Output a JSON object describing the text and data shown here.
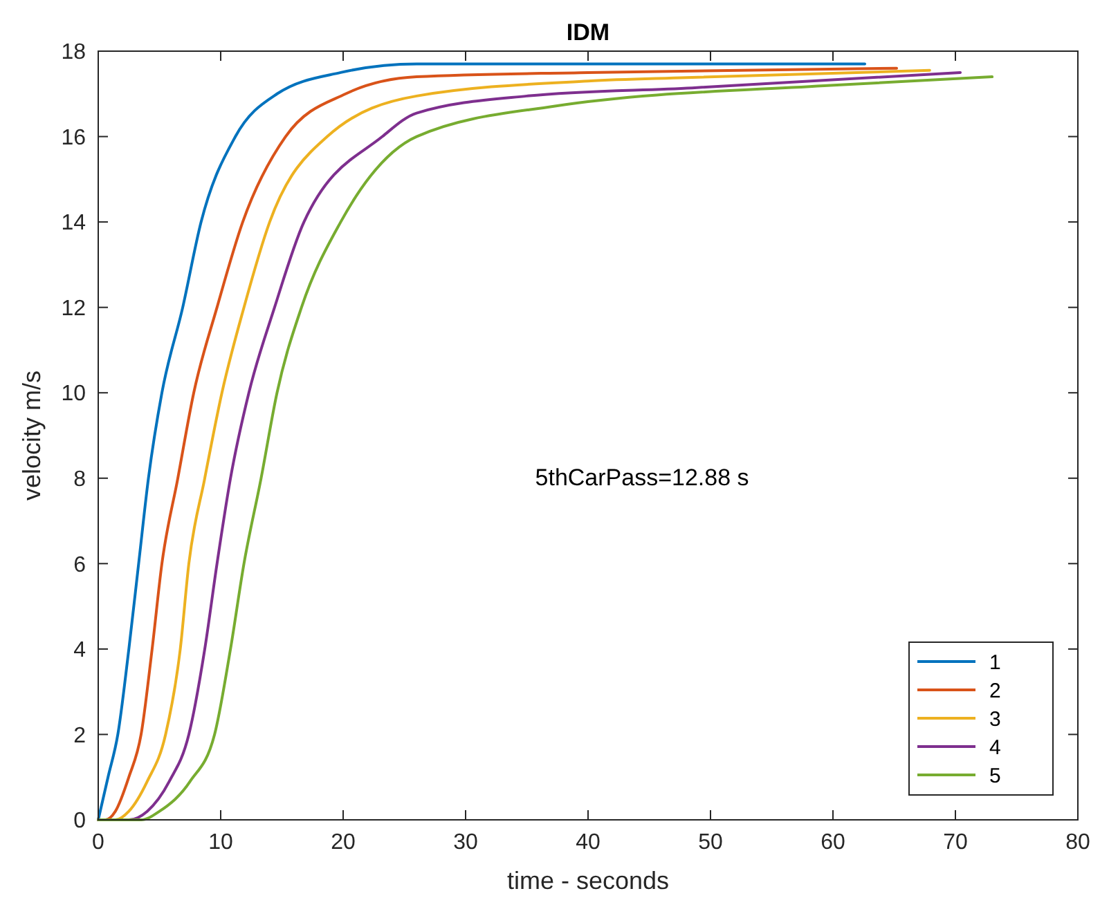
{
  "chart_data": {
    "type": "line",
    "title": "IDM",
    "xlabel": "time - seconds",
    "ylabel": "velocity m/s",
    "annotations": [
      "5thCarPass=12.88 s"
    ],
    "xlim": [
      0,
      80
    ],
    "ylim": [
      0,
      18
    ],
    "xticks": [
      0,
      10,
      20,
      30,
      40,
      50,
      60,
      70,
      80
    ],
    "yticks": [
      0,
      2,
      4,
      6,
      8,
      10,
      12,
      14,
      16,
      18
    ],
    "grid": false,
    "legend": "bottom right",
    "marker": "none",
    "line_style": "solid",
    "series": [
      {
        "name": "1",
        "color": "#0072bd",
        "x": [
          0,
          0.8,
          1.6,
          2.5,
          3.3,
          4.1,
          5.2,
          6.9,
          8.4,
          11.2,
          14.6,
          19.8,
          26,
          40,
          62.6
        ],
        "values": [
          0,
          1,
          2,
          4,
          6,
          8,
          10,
          12,
          14,
          16,
          17,
          17.5,
          17.7,
          17.7,
          17.7
        ]
      },
      {
        "name": "2",
        "color": "#d95319",
        "x": [
          0,
          0.6,
          1.4,
          2.5,
          3.5,
          4.4,
          5.2,
          6.5,
          7.8,
          9.7,
          11.8,
          15.3,
          20.2,
          26,
          40,
          65.2
        ],
        "values": [
          0,
          0,
          0.2,
          1,
          2,
          4,
          6,
          8,
          10,
          12,
          14,
          16,
          17,
          17.4,
          17.5,
          17.6
        ]
      },
      {
        "name": "3",
        "color": "#edb120",
        "x": [
          0,
          1.4,
          2.5,
          4,
          5.5,
          6.7,
          7.4,
          8.7,
          10.1,
          11.9,
          14,
          18.7,
          26,
          40,
          48,
          67.9
        ],
        "values": [
          0,
          0,
          0.2,
          0.9,
          2,
          4,
          6,
          8,
          10,
          12,
          14,
          16,
          16.95,
          17.3,
          17.38,
          17.55
        ]
      },
      {
        "name": "4",
        "color": "#7e2f8e",
        "x": [
          0,
          2.5,
          4,
          5.8,
          7.4,
          8.7,
          9.7,
          10.8,
          12.3,
          14.4,
          16.8,
          23.2,
          26,
          35,
          48.5,
          70.4
        ],
        "values": [
          0,
          0,
          0.2,
          0.9,
          2,
          4,
          6,
          8,
          10,
          12,
          14,
          16,
          16.55,
          16.95,
          17.14,
          17.5
        ]
      },
      {
        "name": "5",
        "color": "#77ac30",
        "x": [
          0,
          3.5,
          5,
          7.5,
          9.5,
          10.8,
          11.9,
          13.3,
          14.6,
          16.6,
          19.8,
          26,
          37.2,
          59.8,
          73
        ],
        "values": [
          0,
          0,
          0.2,
          0.9,
          2,
          4,
          6,
          8,
          10,
          12,
          14,
          16,
          16.71,
          17.2,
          17.4
        ]
      }
    ]
  }
}
